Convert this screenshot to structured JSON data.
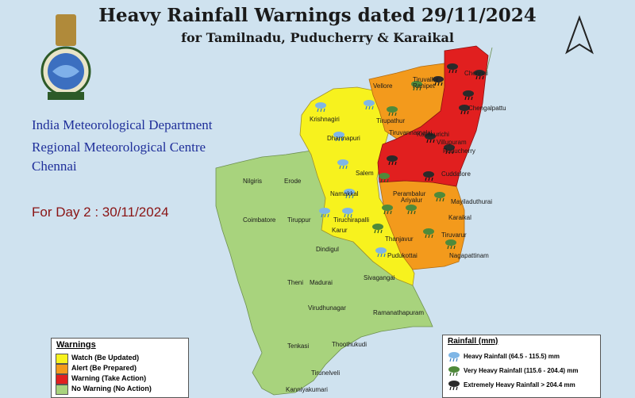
{
  "header": {
    "title": "Heavy Rainfall Warnings dated 29/11/2024",
    "subtitle": "for Tamilnadu, Puducherry & Karaikal"
  },
  "organization": {
    "line1": "India Meteorological Department",
    "line2": "Regional Meteorological Centre",
    "line3": "Chennai"
  },
  "forecast_day": "For Day 2 : 30/11/2024",
  "icons": {
    "emblem": "imd-emblem-icon",
    "north_arrow": "north-arrow-icon",
    "heavy": "heavy-rain-cloud-icon",
    "very_heavy": "very-heavy-rain-cloud-icon",
    "extremely_heavy": "extremely-heavy-rain-cloud-icon"
  },
  "colors": {
    "sea": "#cfe2ef",
    "watch": "#f7f21e",
    "alert": "#f39a1c",
    "warning": "#e11f1f",
    "no_warning": "#a8d37d"
  },
  "places": [
    {
      "name": "Chennai"
    },
    {
      "name": "Tiruvallur"
    },
    {
      "name": "Chengalpattu"
    },
    {
      "name": "Vellore"
    },
    {
      "name": "Ranipet"
    },
    {
      "name": "Krishnagiri"
    },
    {
      "name": "Tirupathur"
    },
    {
      "name": "Tiruvannamalai"
    },
    {
      "name": "Dharmapuri"
    },
    {
      "name": "Kallakurichi"
    },
    {
      "name": "Puducherry"
    },
    {
      "name": "Villupuram"
    },
    {
      "name": "Salem"
    },
    {
      "name": "Cuddalore"
    },
    {
      "name": "Nilgiris"
    },
    {
      "name": "Erode"
    },
    {
      "name": "Namakkal"
    },
    {
      "name": "Perambalur"
    },
    {
      "name": "Ariyalur"
    },
    {
      "name": "Mayiladuthurai"
    },
    {
      "name": "Coimbatore"
    },
    {
      "name": "Tiruppur"
    },
    {
      "name": "Tiruchirapalli"
    },
    {
      "name": "Karaikal"
    },
    {
      "name": "Karur"
    },
    {
      "name": "Thanjavur"
    },
    {
      "name": "Tiruvarur"
    },
    {
      "name": "Dindigul"
    },
    {
      "name": "Pudukottai"
    },
    {
      "name": "Nagapattinam"
    },
    {
      "name": "Theni"
    },
    {
      "name": "Madurai"
    },
    {
      "name": "Sivagangai"
    },
    {
      "name": "Virudhunagar"
    },
    {
      "name": "Ramanathapuram"
    },
    {
      "name": "Tenkasi"
    },
    {
      "name": "Thoothukudi"
    },
    {
      "name": "Tirunelveli"
    },
    {
      "name": "Kanniyakumari"
    }
  ],
  "warnings_legend": {
    "title": "Warnings",
    "items": [
      {
        "label": "Watch (Be Updated)",
        "color": "#f7f21e"
      },
      {
        "label": "Alert (Be Prepared)",
        "color": "#f39a1c"
      },
      {
        "label": "Warning (Take Action)",
        "color": "#e11f1f"
      },
      {
        "label": "No Warning (No Action)",
        "color": "#a8d37d"
      }
    ]
  },
  "rainfall_legend": {
    "title": "Rainfall (mm)",
    "items": [
      {
        "label": "Heavy Rainfall (64.5 - 115.5) mm"
      },
      {
        "label": "Very Heavy Rainfall (115.6 - 204.4) mm"
      },
      {
        "label": "Extremely Heavy Rainfall > 204.4 mm"
      }
    ]
  }
}
